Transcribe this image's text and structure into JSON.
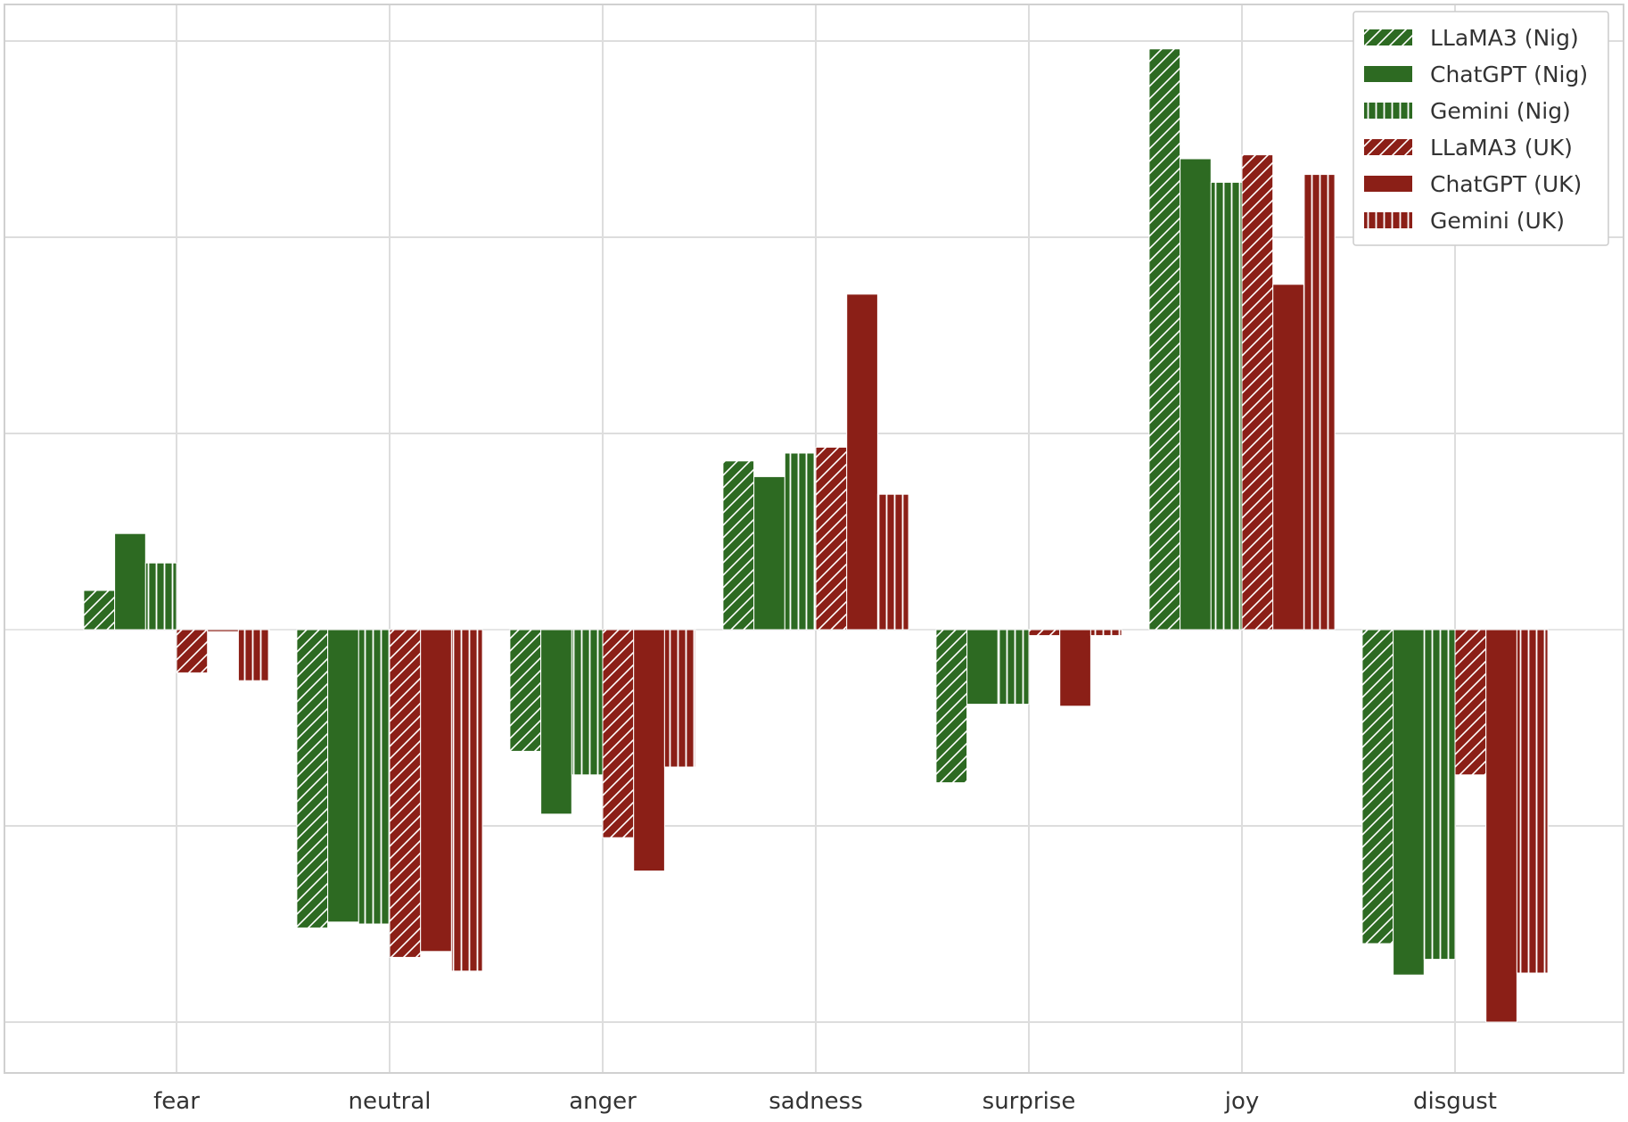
{
  "chart_data": {
    "type": "bar",
    "title": "",
    "xlabel": "",
    "ylabel": "",
    "categories": [
      "fear",
      "neutral",
      "anger",
      "sadness",
      "surprise",
      "joy",
      "disgust"
    ],
    "ylim": [
      -1.25,
      1.6
    ],
    "yticks": [
      -1,
      -0.5,
      0,
      0.5,
      1,
      1.5
    ],
    "grid": true,
    "legend_position": "top-right",
    "series": [
      {
        "name": "LLaMA3 (Nig)",
        "color": "#2d6a22",
        "pattern": "diagonal",
        "values": [
          0.1,
          -0.76,
          -0.31,
          0.43,
          -0.39,
          1.48,
          -0.8
        ]
      },
      {
        "name": "ChatGPT (Nig)",
        "color": "#2d6a22",
        "pattern": "solid",
        "values": [
          0.245,
          -0.745,
          -0.47,
          0.39,
          -0.19,
          1.2,
          -0.88
        ]
      },
      {
        "name": "Gemini (Nig)",
        "color": "#2d6a22",
        "pattern": "vertical",
        "values": [
          0.17,
          -0.75,
          -0.37,
          0.45,
          -0.19,
          1.14,
          -0.84
        ]
      },
      {
        "name": "LLaMA3 (UK)",
        "color": "#8b1f17",
        "pattern": "diagonal",
        "values": [
          -0.11,
          -0.835,
          -0.53,
          0.465,
          -0.015,
          1.21,
          -0.37
        ]
      },
      {
        "name": "ChatGPT (UK)",
        "color": "#8b1f17",
        "pattern": "solid",
        "values": [
          -0.005,
          -0.82,
          -0.615,
          0.855,
          -0.195,
          0.88,
          -1.0
        ]
      },
      {
        "name": "Gemini (UK)",
        "color": "#8b1f17",
        "pattern": "vertical",
        "values": [
          -0.13,
          -0.87,
          -0.35,
          0.345,
          -0.015,
          1.16,
          -0.875
        ]
      }
    ]
  }
}
